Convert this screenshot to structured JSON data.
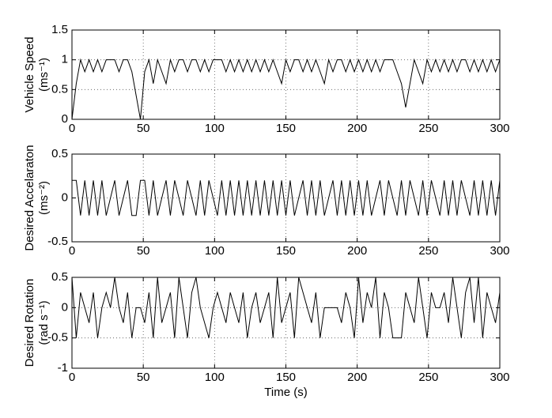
{
  "chart_data": [
    {
      "type": "line",
      "ylabel": [
        "Vehicle Speed",
        "(ms⁻¹)"
      ],
      "x": [
        0,
        3,
        6,
        9,
        12,
        15,
        18,
        21,
        24,
        27,
        30,
        33,
        36,
        39,
        42,
        45,
        48,
        51,
        54,
        57,
        60,
        63,
        66,
        69,
        72,
        75,
        78,
        81,
        84,
        87,
        90,
        93,
        96,
        99,
        102,
        105,
        108,
        111,
        114,
        117,
        120,
        123,
        126,
        129,
        132,
        135,
        138,
        141,
        144,
        147,
        150,
        153,
        156,
        159,
        162,
        165,
        168,
        171,
        174,
        177,
        180,
        183,
        186,
        189,
        192,
        195,
        198,
        201,
        204,
        207,
        210,
        213,
        216,
        219,
        222,
        225,
        228,
        231,
        234,
        237,
        240,
        243,
        246,
        249,
        252,
        255,
        258,
        261,
        264,
        267,
        270,
        273,
        276,
        279,
        282,
        285,
        288,
        291,
        294,
        297,
        300
      ],
      "values": [
        0,
        0.6,
        1,
        0.8,
        1,
        0.8,
        1,
        0.8,
        1,
        1,
        1,
        0.8,
        1,
        1,
        0.8,
        0.4,
        0,
        0.8,
        1,
        0.6,
        1,
        0.8,
        0.6,
        1,
        0.8,
        1,
        1,
        0.8,
        1,
        1,
        0.8,
        1,
        0.8,
        1,
        1,
        1,
        0.8,
        1,
        0.8,
        1,
        0.8,
        1,
        0.8,
        1,
        0.8,
        1,
        0.8,
        1,
        0.8,
        0.6,
        1,
        0.8,
        1,
        1,
        0.8,
        1,
        0.8,
        1,
        0.8,
        0.6,
        1,
        0.8,
        1,
        1,
        0.8,
        1,
        0.8,
        1,
        0.8,
        1,
        0.8,
        1,
        0.8,
        1,
        1,
        1,
        0.8,
        0.6,
        0.2,
        0.6,
        1,
        0.8,
        0.6,
        1,
        0.8,
        1,
        0.8,
        1,
        0.8,
        1,
        0.8,
        1,
        1,
        0.8,
        1,
        0.8,
        1,
        0.8,
        1,
        0.8,
        1
      ],
      "color": "#000000",
      "xlim": [
        0,
        300
      ],
      "xticks": [
        0,
        50,
        100,
        150,
        200,
        250,
        300
      ],
      "ylim": [
        0,
        1.5
      ],
      "yticks": [
        0,
        0.5,
        1,
        1.5
      ],
      "grid": true
    },
    {
      "type": "line",
      "ylabel": [
        "Desired Accelaraton",
        "(ms⁻²)"
      ],
      "x": [
        0,
        3,
        6,
        9,
        12,
        15,
        18,
        21,
        24,
        27,
        30,
        33,
        36,
        39,
        42,
        45,
        48,
        51,
        54,
        57,
        60,
        63,
        66,
        69,
        72,
        75,
        78,
        81,
        84,
        87,
        90,
        93,
        96,
        99,
        102,
        105,
        108,
        111,
        114,
        117,
        120,
        123,
        126,
        129,
        132,
        135,
        138,
        141,
        144,
        147,
        150,
        153,
        156,
        159,
        162,
        165,
        168,
        171,
        174,
        177,
        180,
        183,
        186,
        189,
        192,
        195,
        198,
        201,
        204,
        207,
        210,
        213,
        216,
        219,
        222,
        225,
        228,
        231,
        234,
        237,
        240,
        243,
        246,
        249,
        252,
        255,
        258,
        261,
        264,
        267,
        270,
        273,
        276,
        279,
        282,
        285,
        288,
        291,
        294,
        297,
        300
      ],
      "values": [
        0.2,
        0.2,
        -0.2,
        0.2,
        -0.2,
        0.2,
        -0.2,
        0.2,
        -0.2,
        0,
        0.2,
        -0.2,
        0,
        0.2,
        -0.2,
        -0.2,
        0.2,
        0.2,
        -0.2,
        0.2,
        -0.2,
        0,
        0.2,
        -0.2,
        0.2,
        0,
        -0.2,
        0.2,
        0,
        -0.2,
        0.2,
        -0.2,
        0.2,
        0,
        -0.2,
        0.2,
        -0.2,
        0.2,
        -0.2,
        0.2,
        -0.2,
        0.2,
        -0.2,
        0.2,
        -0.2,
        0.2,
        -0.2,
        0.2,
        -0.2,
        0.2,
        -0.2,
        0.2,
        -0.2,
        0,
        0.2,
        -0.2,
        0.2,
        -0.2,
        0.2,
        -0.2,
        0,
        0.2,
        -0.2,
        0.2,
        -0.2,
        0.2,
        -0.2,
        0.2,
        -0.2,
        0.2,
        -0.2,
        0,
        0.2,
        -0.2,
        0.2,
        0,
        -0.2,
        0.2,
        -0.2,
        0.2,
        0,
        -0.2,
        0.2,
        -0.2,
        0.2,
        0,
        -0.2,
        0.2,
        -0.2,
        0.2,
        -0.2,
        0.2,
        0,
        -0.2,
        0.2,
        -0.2,
        0.2,
        -0.2,
        0.2,
        -0.2,
        0.2
      ],
      "color": "#000000",
      "xlim": [
        0,
        300
      ],
      "xticks": [
        0,
        50,
        100,
        150,
        200,
        250,
        300
      ],
      "ylim": [
        -0.5,
        0.5
      ],
      "yticks": [
        -0.5,
        0,
        0.5
      ],
      "grid": true
    },
    {
      "type": "line",
      "ylabel": [
        "Desired Rotation",
        "(rad s⁻¹)"
      ],
      "xlabel": "Time (s)",
      "x": [
        0,
        3,
        6,
        9,
        12,
        15,
        18,
        21,
        24,
        27,
        30,
        33,
        36,
        39,
        42,
        45,
        48,
        51,
        54,
        57,
        60,
        63,
        66,
        69,
        72,
        75,
        78,
        81,
        84,
        87,
        90,
        93,
        96,
        99,
        102,
        105,
        108,
        111,
        114,
        117,
        120,
        123,
        126,
        129,
        132,
        135,
        138,
        141,
        144,
        147,
        150,
        153,
        156,
        159,
        162,
        165,
        168,
        171,
        174,
        177,
        180,
        183,
        186,
        189,
        192,
        195,
        198,
        201,
        204,
        207,
        210,
        213,
        216,
        219,
        222,
        225,
        228,
        231,
        234,
        237,
        240,
        243,
        246,
        249,
        252,
        255,
        258,
        261,
        264,
        267,
        270,
        273,
        276,
        279,
        282,
        285,
        288,
        291,
        294,
        297,
        300
      ],
      "values": [
        0.5,
        -0.5,
        0.25,
        0,
        -0.25,
        0.25,
        -0.5,
        0,
        0.25,
        0,
        0.5,
        0,
        -0.25,
        0.25,
        -0.5,
        0,
        0,
        -0.25,
        0.25,
        -0.5,
        0.5,
        -0.25,
        0,
        0.25,
        -0.5,
        0.5,
        0,
        -0.5,
        0.25,
        0.5,
        0,
        -0.25,
        -0.5,
        0,
        0.25,
        0,
        -0.25,
        0.25,
        0,
        -0.25,
        0.25,
        -0.5,
        0,
        0.25,
        -0.25,
        0,
        0.25,
        -0.5,
        0.5,
        -0.25,
        0,
        0.25,
        -0.5,
        0.5,
        0.25,
        0,
        -0.25,
        0.25,
        -0.5,
        0,
        0,
        0,
        0,
        -0.25,
        0.25,
        0,
        -0.5,
        0.5,
        -0.25,
        0.25,
        0,
        0.5,
        -0.5,
        0.25,
        0,
        -0.5,
        -0.5,
        -0.5,
        0.25,
        0,
        -0.25,
        0.5,
        0,
        -0.5,
        0.25,
        0,
        0,
        0.25,
        -0.25,
        0.5,
        0,
        -0.5,
        0.25,
        0.5,
        -0.25,
        0.5,
        -0.5,
        0.25,
        0,
        -0.25,
        0.25
      ],
      "color": "#000000",
      "xlim": [
        0,
        300
      ],
      "xticks": [
        0,
        50,
        100,
        150,
        200,
        250,
        300
      ],
      "ylim": [
        -1,
        0.5
      ],
      "yticks": [
        -1,
        -0.5,
        0,
        0.5
      ],
      "grid": true
    }
  ]
}
